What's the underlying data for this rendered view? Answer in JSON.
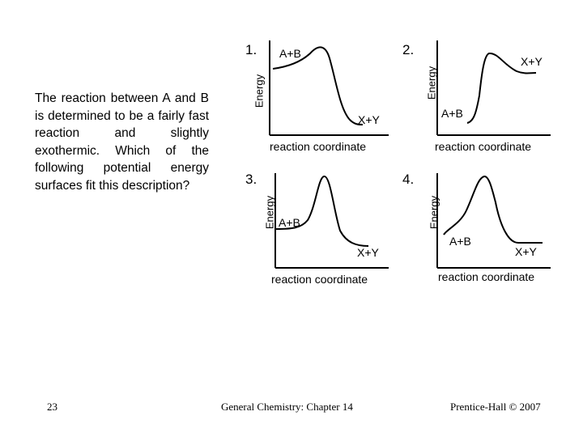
{
  "question": "The reaction between A and B is determined to be a fairly fast reaction and slightly exothermic. Which of the following potential energy surfaces fit this description?",
  "diagrams": [
    {
      "number": "1.",
      "y_label": "Energy",
      "x_label": "reaction coordinate",
      "reactants": "A+B",
      "products": "X+Y"
    },
    {
      "number": "2.",
      "y_label": "Energy",
      "x_label": "reaction coordinate",
      "reactants": "A+B",
      "products": "X+Y"
    },
    {
      "number": "3.",
      "y_label": "Energy",
      "x_label": "reaction coordinate",
      "reactants": "A+B",
      "products": "X+Y"
    },
    {
      "number": "4.",
      "y_label": "Energy",
      "x_label": "reaction coordinate",
      "reactants": "A+B",
      "products": "X+Y"
    }
  ],
  "footer": {
    "page_number": "23",
    "course": "General Chemistry: Chapter 14",
    "copyright": "Prentice-Hall © 2007"
  }
}
